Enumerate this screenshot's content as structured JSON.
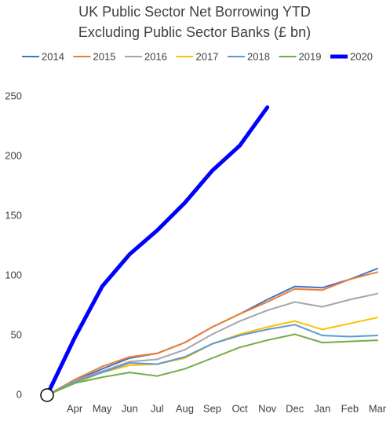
{
  "chart_data": {
    "type": "line",
    "title": [
      "UK Public Sector Net Borrowing YTD",
      "Excluding Public Sector Banks (£ bn)"
    ],
    "categories": [
      null,
      "Apr",
      "May",
      "Jun",
      "Jul",
      "Aug",
      "Sep",
      "Oct",
      "Nov",
      "Dec",
      "Jan",
      "Feb",
      "Mar"
    ],
    "series": [
      {
        "name": "2014",
        "color": "#4472c4",
        "width": 2,
        "values": [
          0,
          12,
          22,
          31,
          35,
          44,
          57,
          68,
          80,
          91,
          90,
          97,
          106
        ]
      },
      {
        "name": "2015",
        "color": "#ed7d31",
        "width": 2,
        "values": [
          0,
          13,
          24,
          32,
          35,
          44,
          57,
          68,
          78,
          89,
          88,
          97,
          103
        ]
      },
      {
        "name": "2016",
        "color": "#a5a5a5",
        "width": 2,
        "values": [
          0,
          12,
          20,
          28,
          30,
          38,
          51,
          62,
          71,
          78,
          74,
          80,
          85
        ]
      },
      {
        "name": "2017",
        "color": "#ffc000",
        "width": 2,
        "values": [
          0,
          10,
          19,
          25,
          26,
          31,
          43,
          51,
          57,
          62,
          55,
          60,
          65
        ]
      },
      {
        "name": "2018",
        "color": "#5b9bd5",
        "width": 2,
        "values": [
          0,
          11,
          19,
          27,
          26,
          32,
          43,
          50,
          55,
          59,
          50,
          49,
          50
        ]
      },
      {
        "name": "2019",
        "color": "#70ad47",
        "width": 2,
        "values": [
          0,
          10,
          15,
          19,
          16,
          22,
          31,
          40,
          46,
          51,
          44,
          45,
          46
        ]
      },
      {
        "name": "2020",
        "color": "#0000ff",
        "width": 5,
        "values": [
          0,
          48,
          91,
          118,
          138,
          161,
          188,
          209,
          241,
          null,
          null,
          null,
          null
        ]
      }
    ],
    "ylim": [
      0,
      250
    ],
    "yticks": [
      0,
      50,
      100,
      150,
      200,
      250
    ],
    "grid": false,
    "legend": "top"
  }
}
